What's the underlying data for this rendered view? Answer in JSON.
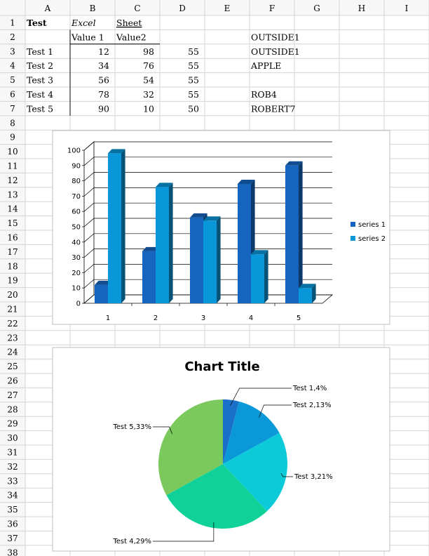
{
  "columns": [
    "A",
    "B",
    "C",
    "D",
    "E",
    "F",
    "G",
    "H",
    "I"
  ],
  "rows": [
    "1",
    "2",
    "3",
    "4",
    "5",
    "6",
    "7",
    "8",
    "9",
    "10",
    "11",
    "12",
    "13",
    "14",
    "15",
    "16",
    "17",
    "18",
    "19",
    "20",
    "21",
    "22",
    "23",
    "24",
    "25",
    "26",
    "27",
    "28",
    "29",
    "30",
    "31",
    "32",
    "33",
    "34",
    "35",
    "36",
    "37",
    "38"
  ],
  "cells": {
    "A1": "Test",
    "B1": "Excel",
    "C1": "Sheet",
    "B2": "Value 1",
    "C2": "Value2",
    "F2": "OUTSIDE1",
    "A3": "Test 1",
    "B3": "12",
    "C3": "98",
    "D3": "55",
    "F3": "OUTSIDE1",
    "A4": "Test 2",
    "B4": "34",
    "C4": "76",
    "D4": "55",
    "F4": "APPLE",
    "A5": "Test 3",
    "B5": "56",
    "C5": "54",
    "D5": "55",
    "A6": "Test 4",
    "B6": "78",
    "C6": "32",
    "D6": "55",
    "F6": "ROB4",
    "A7": "Test 5",
    "B7": "90",
    "C7": "10",
    "D7": "50",
    "F7": "ROBERT7"
  },
  "colors": {
    "series1": "#1565c0",
    "series2": "#0a97d9",
    "grid_border": "#d4d4d4",
    "header_bg": "#f7f7f7"
  },
  "chart_data": [
    {
      "type": "bar",
      "categories": [
        "1",
        "2",
        "3",
        "4",
        "5"
      ],
      "series": [
        {
          "name": "series 1",
          "values": [
            12,
            34,
            56,
            78,
            90
          ]
        },
        {
          "name": "series 2",
          "values": [
            98,
            76,
            54,
            32,
            10
          ]
        }
      ],
      "yticks": [
        "0",
        "10",
        "20",
        "30",
        "40",
        "50",
        "60",
        "70",
        "80",
        "90",
        "100"
      ],
      "ylim": [
        0,
        100
      ],
      "legend_position": "right",
      "grid": true
    },
    {
      "type": "pie",
      "title": "Chart Title",
      "slices": [
        {
          "label": "Test 1",
          "value": 4,
          "text": "Test 1,4%",
          "color": "#1a6fc9"
        },
        {
          "label": "Test 2",
          "value": 13,
          "text": "Test 2,13%",
          "color": "#0b98d8"
        },
        {
          "label": "Test 3",
          "value": 21,
          "text": "Test 3,21%",
          "color": "#0ccad8"
        },
        {
          "label": "Test 4",
          "value": 29,
          "text": "Test 4,29%",
          "color": "#10d198"
        },
        {
          "label": "Test 5",
          "value": 33,
          "text": "Test 5,33%",
          "color": "#7bc95c"
        }
      ]
    }
  ]
}
